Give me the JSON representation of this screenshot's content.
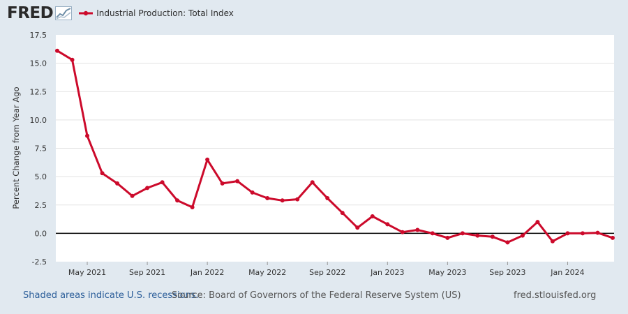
{
  "header": {
    "logo_text": "FRED",
    "series_label": "Industrial Production: Total Index",
    "series_color": "#cc0a2b"
  },
  "footer": {
    "recession_note": "Shaded areas indicate U.S. recessions.",
    "source": "Source: Board of Governors of the Federal Reserve System (US)",
    "site": "fred.stlouisfed.org"
  },
  "chart_data": {
    "type": "line",
    "ylabel": "Percent Change from Year Ago",
    "ylim": [
      -2.5,
      17.5
    ],
    "yticks": [
      "17.5",
      "15.0",
      "12.5",
      "10.0",
      "7.5",
      "5.0",
      "2.5",
      "0.0",
      "-2.5"
    ],
    "xtick_labels": [
      "May 2021",
      "Sep 2021",
      "Jan 2022",
      "May 2022",
      "Sep 2022",
      "Jan 2023",
      "May 2023",
      "Sep 2023",
      "Jan 2024"
    ],
    "grid": true,
    "zero_line": true,
    "series": [
      {
        "name": "Industrial Production: Total Index",
        "color": "#cc0a2b",
        "x": [
          "2021-03",
          "2021-04",
          "2021-05",
          "2021-06",
          "2021-07",
          "2021-08",
          "2021-09",
          "2021-10",
          "2021-11",
          "2021-12",
          "2022-01",
          "2022-02",
          "2022-03",
          "2022-04",
          "2022-05",
          "2022-06",
          "2022-07",
          "2022-08",
          "2022-09",
          "2022-10",
          "2022-11",
          "2022-12",
          "2023-01",
          "2023-02",
          "2023-03",
          "2023-04",
          "2023-05",
          "2023-06",
          "2023-07",
          "2023-08",
          "2023-09",
          "2023-10",
          "2023-11",
          "2023-12",
          "2024-01",
          "2024-02",
          "2024-03",
          "2024-04"
        ],
        "values": [
          16.1,
          15.3,
          8.6,
          5.3,
          4.4,
          3.3,
          4.0,
          4.5,
          2.9,
          2.3,
          6.5,
          4.4,
          4.6,
          3.6,
          3.1,
          2.9,
          3.0,
          4.5,
          3.1,
          1.8,
          0.5,
          1.5,
          0.8,
          0.1,
          0.3,
          0.0,
          -0.4,
          0.0,
          -0.2,
          -0.3,
          -0.8,
          -0.2,
          1.0,
          -0.7,
          0.0,
          0.0,
          0.05,
          -0.4
        ]
      }
    ]
  }
}
